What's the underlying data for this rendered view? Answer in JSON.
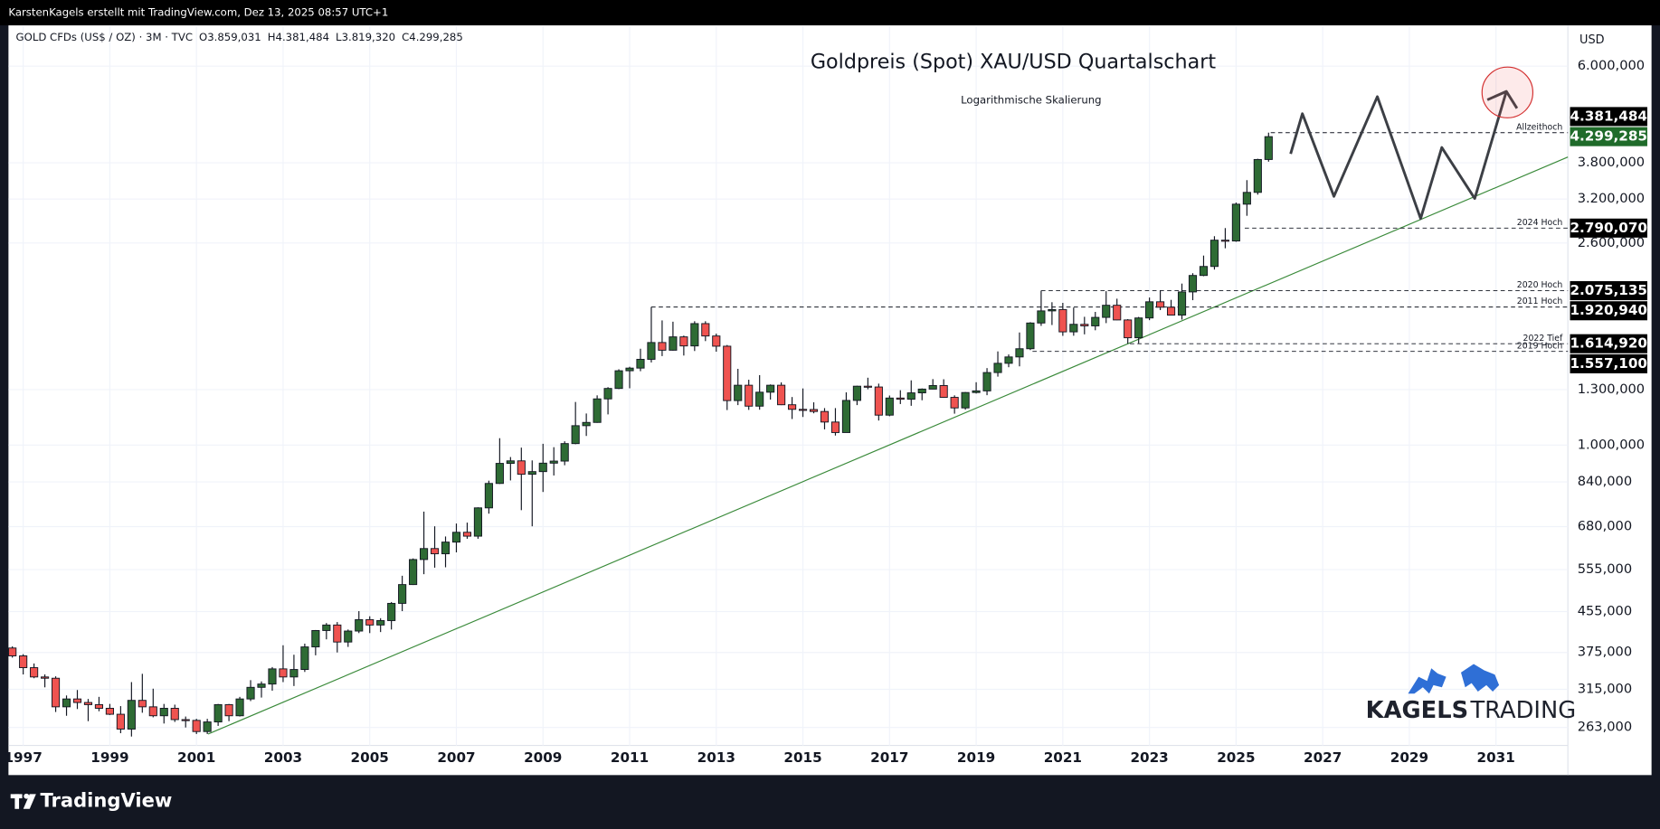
{
  "header": {
    "text": "KarstenKagels erstellt mit TradingView.com, Dez 13, 2025 08:57 UTC+1"
  },
  "footer": {
    "brand": "TradingView"
  },
  "logo": {
    "first": "KAGELS",
    "second": "TRADING"
  },
  "chart_data": {
    "type": "candlestick",
    "title": "Goldpreis (Spot) XAU/USD Quartalschart",
    "subtitle": "Logarithmische Skalierung",
    "axis_unit": "USD",
    "legend": {
      "symbol": "GOLD CFDs (US$ / OZ) · 3M · TVC",
      "values": [
        "O3.859,031",
        "H4.381,484",
        "L3.819,320",
        "C4.299,285"
      ]
    },
    "log_scale": true,
    "grid": true,
    "up_color": "#2e6b34",
    "down_color": "#ef5350",
    "xlim": [
      1996.66,
      2032.66
    ],
    "xticks": [
      1997,
      1999,
      2001,
      2003,
      2005,
      2007,
      2009,
      2011,
      2013,
      2015,
      2017,
      2019,
      2021,
      2023,
      2025,
      2027,
      2029,
      2031
    ],
    "ylim": [
      244,
      7240
    ],
    "yticks": [
      {
        "value": 263,
        "label": "263,000"
      },
      {
        "value": 315,
        "label": "315,000"
      },
      {
        "value": 375,
        "label": "375,000"
      },
      {
        "value": 455,
        "label": "455,000"
      },
      {
        "value": 555,
        "label": "555,000"
      },
      {
        "value": 680,
        "label": "680,000"
      },
      {
        "value": 840,
        "label": "840,000"
      },
      {
        "value": 1000,
        "label": "1.000,000"
      },
      {
        "value": 1300,
        "label": "1.300,000"
      },
      {
        "value": 2600,
        "label": "2.600,000"
      },
      {
        "value": 3200,
        "label": "3.200,000"
      },
      {
        "value": 3800,
        "label": "3.800,000"
      },
      {
        "value": 6000,
        "label": "6.000,000"
      }
    ],
    "x": [
      1996.75,
      1997.0,
      1997.25,
      1997.5,
      1997.75,
      1998.0,
      1998.25,
      1998.5,
      1998.75,
      1999.0,
      1999.25,
      1999.5,
      1999.75,
      2000.0,
      2000.25,
      2000.5,
      2000.75,
      2001.0,
      2001.25,
      2001.5,
      2001.75,
      2002.0,
      2002.25,
      2002.5,
      2002.75,
      2003.0,
      2003.25,
      2003.5,
      2003.75,
      2004.0,
      2004.25,
      2004.5,
      2004.75,
      2005.0,
      2005.25,
      2005.5,
      2005.75,
      2006.0,
      2006.25,
      2006.5,
      2006.75,
      2007.0,
      2007.25,
      2007.5,
      2007.75,
      2008.0,
      2008.25,
      2008.5,
      2008.75,
      2009.0,
      2009.25,
      2009.5,
      2009.75,
      2010.0,
      2010.25,
      2010.5,
      2010.75,
      2011.0,
      2011.25,
      2011.5,
      2011.75,
      2012.0,
      2012.25,
      2012.5,
      2012.75,
      2013.0,
      2013.25,
      2013.5,
      2013.75,
      2014.0,
      2014.25,
      2014.5,
      2014.75,
      2015.0,
      2015.25,
      2015.5,
      2015.75,
      2016.0,
      2016.25,
      2016.5,
      2016.75,
      2017.0,
      2017.25,
      2017.5,
      2017.75,
      2018.0,
      2018.25,
      2018.5,
      2018.75,
      2019.0,
      2019.25,
      2019.5,
      2019.75,
      2020.0,
      2020.25,
      2020.5,
      2020.75,
      2021.0,
      2021.25,
      2021.5,
      2021.75,
      2022.0,
      2022.25,
      2022.5,
      2022.75,
      2023.0,
      2023.25,
      2023.5,
      2023.75,
      2024.0,
      2024.25,
      2024.5,
      2024.75,
      2025.0,
      2025.25,
      2025.5,
      2025.75
    ],
    "open": [
      383,
      369,
      349,
      334,
      332,
      290,
      301,
      296,
      293,
      288,
      280,
      261,
      299,
      290,
      278,
      288,
      273,
      272,
      258,
      270,
      293,
      278,
      301,
      318,
      323,
      347,
      334,
      346,
      385,
      416,
      427,
      394,
      415,
      438,
      427,
      436,
      473,
      517,
      582,
      613,
      598,
      632,
      662,
      650,
      743,
      834,
      917,
      928,
      871,
      882,
      918,
      927,
      1007,
      1096,
      1113,
      1244,
      1307,
      1421,
      1439,
      1500,
      1624,
      1566,
      1668,
      1598,
      1776,
      1675,
      1596,
      1234,
      1327,
      1202,
      1284,
      1327,
      1210,
      1184,
      1183,
      1172,
      1115,
      1061,
      1235,
      1321,
      1316,
      1152,
      1249,
      1242,
      1280,
      1303,
      1325,
      1253,
      1192,
      1282,
      1292,
      1409,
      1472,
      1517,
      1577,
      1781,
      1886,
      1898,
      1708,
      1770,
      1757,
      1829,
      1937,
      1807,
      1661,
      1824,
      1969,
      1919,
      1849,
      2063,
      2230,
      2327,
      2635,
      2625,
      3124,
      3303,
      3859.031
    ],
    "high": [
      386,
      372,
      356,
      338,
      335,
      306,
      314,
      301,
      304,
      294,
      291,
      326,
      339,
      316,
      294,
      293,
      277,
      274,
      274,
      294,
      294,
      304,
      329,
      327,
      350,
      388,
      371,
      391,
      417,
      431,
      433,
      418,
      456,
      445,
      441,
      476,
      539,
      585,
      730,
      681,
      649,
      690,
      693,
      745,
      845,
      1033,
      945,
      988,
      930,
      1006,
      990,
      1018,
      1226,
      1161,
      1265,
      1315,
      1431,
      1448,
      1577,
      1920.94,
      1803,
      1792,
      1678,
      1796,
      1796,
      1694,
      1605,
      1434,
      1362,
      1392,
      1332,
      1345,
      1255,
      1307,
      1224,
      1191,
      1191,
      1283,
      1324,
      1375,
      1337,
      1264,
      1296,
      1358,
      1307,
      1366,
      1365,
      1265,
      1285,
      1346,
      1439,
      1557.1,
      1535,
      1703,
      1788,
      2075.135,
      1965,
      1959,
      1916,
      1834,
      1877,
      2070,
      1998,
      1814,
      1833,
      2009,
      2080,
      1987,
      2146,
      2254,
      2450,
      2685,
      2790.07,
      3148,
      3500,
      3872,
      4381.484
    ],
    "low": [
      366,
      338,
      332,
      318,
      283,
      278,
      287,
      271,
      284,
      279,
      256,
      252,
      282,
      276,
      268,
      270,
      263,
      255,
      255,
      265,
      271,
      277,
      298,
      303,
      313,
      326,
      320,
      342,
      370,
      399,
      375,
      385,
      411,
      411,
      413,
      418,
      456,
      516,
      543,
      560,
      561,
      602,
      642,
      642,
      723,
      832,
      846,
      735,
      681,
      801,
      866,
      909,
      1004,
      1044,
      1111,
      1156,
      1303,
      1308,
      1418,
      1478,
      1523,
      1563,
      1527,
      1560,
      1635,
      1555,
      1180,
      1208,
      1181,
      1182,
      1240,
      1208,
      1131,
      1142,
      1162,
      1077,
      1046,
      1061,
      1208,
      1302,
      1123,
      1146,
      1214,
      1204,
      1236,
      1302,
      1250,
      1160,
      1182,
      1276,
      1266,
      1382,
      1445,
      1451,
      1567,
      1757,
      1764,
      1676,
      1677,
      1688,
      1721,
      1780,
      1805,
      1614.92,
      1617,
      1805,
      1893,
      1848,
      1810,
      1984,
      2222,
      2293,
      2536,
      2615,
      2957,
      3268,
      3819.32
    ],
    "close": [
      369,
      349,
      334,
      332,
      290,
      301,
      296,
      293,
      288,
      280,
      261,
      299,
      290,
      278,
      288,
      273,
      272,
      258,
      270,
      293,
      278,
      301,
      318,
      323,
      347,
      334,
      346,
      385,
      416,
      427,
      394,
      415,
      438,
      427,
      436,
      473,
      517,
      582,
      613,
      598,
      632,
      662,
      650,
      743,
      834,
      917,
      928,
      871,
      882,
      918,
      927,
      1007,
      1096,
      1113,
      1244,
      1307,
      1421,
      1439,
      1500,
      1624,
      1566,
      1668,
      1598,
      1776,
      1675,
      1596,
      1234,
      1327,
      1202,
      1284,
      1327,
      1210,
      1184,
      1183,
      1172,
      1115,
      1061,
      1235,
      1321,
      1316,
      1152,
      1249,
      1242,
      1280,
      1303,
      1325,
      1253,
      1192,
      1282,
      1292,
      1409,
      1472,
      1517,
      1577,
      1781,
      1886,
      1898,
      1708,
      1770,
      1757,
      1829,
      1937,
      1807,
      1661,
      1824,
      1969,
      1919,
      1849,
      2063,
      2230,
      2327,
      2635,
      2625,
      3124,
      3303,
      3859,
      4299.285
    ],
    "levels": [
      {
        "name": "Allzeithoch",
        "value": 4381.484,
        "value_label": "4.381,484",
        "x": 2025.8
      },
      {
        "name": "2024 Hoch",
        "value": 2790.07,
        "value_label": "2.790,070",
        "x": 2025.2
      },
      {
        "name": "2020 Hoch",
        "value": 2075.135,
        "value_label": "2.075,135",
        "x": 2020.5
      },
      {
        "name": "2011 Hoch",
        "value": 1920.94,
        "value_label": "1.920,940",
        "x": 2011.5
      },
      {
        "name": "2022 Tief",
        "value": 1614.92,
        "value_label": "1.614,920",
        "x": 2022.55
      },
      {
        "name": "2019 Hoch",
        "value": 1557.1,
        "value_label": "1.557,100",
        "x": 2020.3
      }
    ],
    "level_badge_color": "#000000",
    "last_price": {
      "value": 4299.285,
      "label": "4.299,285",
      "color": "#1f6b2a"
    },
    "trendline": {
      "x": [
        2001.27,
        2032.66
      ],
      "values": [
        255,
        3904
      ],
      "color": "#3a8a3a"
    },
    "projection": {
      "x": [
        2026.26,
        2026.53,
        2027.26,
        2028.26,
        2029.26,
        2029.75,
        2030.51,
        2031.24
      ],
      "values": [
        3963,
        4793,
        3242,
        5194,
        2918,
        4084,
        3209,
        5325
      ],
      "color": "#3c3f45"
    }
  }
}
